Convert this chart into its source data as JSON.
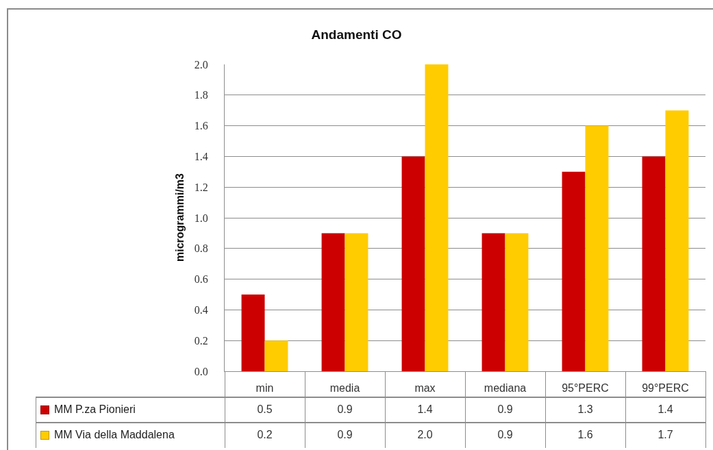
{
  "chart_data": {
    "type": "bar",
    "title": "Andamenti CO",
    "ylabel": "microgrammi/m3",
    "categories": [
      "min",
      "media",
      "max",
      "mediana",
      "95°PERC",
      "99°PERC"
    ],
    "series": [
      {
        "name": "MM P.za Pionieri",
        "color": "#cc0000",
        "values": [
          0.5,
          0.9,
          1.4,
          0.9,
          1.3,
          1.4
        ],
        "value_labels": [
          "0.5",
          "0.9",
          "1.4",
          "0.9",
          "1.3",
          "1.4"
        ]
      },
      {
        "name": "MM Via della Maddalena",
        "color": "#ffcc00",
        "values": [
          0.2,
          0.9,
          2.0,
          0.9,
          1.6,
          1.7
        ],
        "value_labels": [
          "0.2",
          "0.9",
          "2.0",
          "0.9",
          "1.6",
          "1.7"
        ]
      }
    ],
    "ylim": [
      0,
      2
    ],
    "yticks": [
      {
        "value": 0,
        "label": "0.0"
      },
      0.2,
      0.4,
      0.6,
      0.8,
      {
        "value": 1,
        "label": "1.0"
      },
      1.2,
      1.4,
      1.6,
      1.8,
      {
        "value": 2,
        "label": "2.0"
      }
    ],
    "grid": "y",
    "legend": "bottom"
  }
}
